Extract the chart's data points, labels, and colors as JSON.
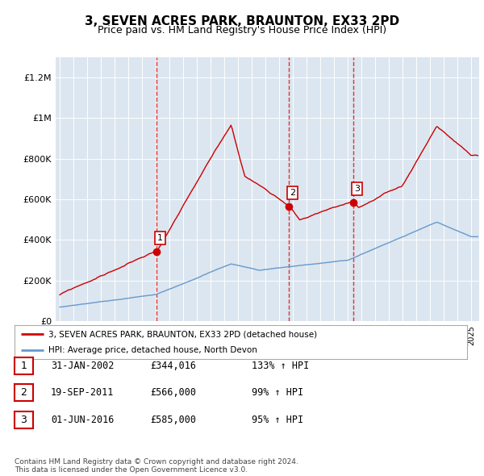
{
  "title": "3, SEVEN ACRES PARK, BRAUNTON, EX33 2PD",
  "subtitle": "Price paid vs. HM Land Registry's House Price Index (HPI)",
  "background_color": "#dce6f0",
  "red_line_color": "#cc0000",
  "blue_line_color": "#6699cc",
  "sale_marker_color": "#cc0000",
  "dashed_line_color": "#dd3333",
  "ylim": [
    0,
    1300000
  ],
  "yticks": [
    0,
    200000,
    400000,
    600000,
    800000,
    1000000,
    1200000
  ],
  "ytick_labels": [
    "£0",
    "£200K",
    "£400K",
    "£600K",
    "£800K",
    "£1M",
    "£1.2M"
  ],
  "sales": [
    {
      "label": "1",
      "date_num": 2002.08,
      "price": 344016
    },
    {
      "label": "2",
      "date_num": 2011.72,
      "price": 566000
    },
    {
      "label": "3",
      "date_num": 2016.42,
      "price": 585000
    }
  ],
  "sale_table": [
    {
      "num": "1",
      "date": "31-JAN-2002",
      "price": "£344,016",
      "hpi": "133% ↑ HPI"
    },
    {
      "num": "2",
      "date": "19-SEP-2011",
      "price": "£566,000",
      "hpi": "99% ↑ HPI"
    },
    {
      "num": "3",
      "date": "01-JUN-2016",
      "price": "£585,000",
      "hpi": "95% ↑ HPI"
    }
  ],
  "legend_red": "3, SEVEN ACRES PARK, BRAUNTON, EX33 2PD (detached house)",
  "legend_blue": "HPI: Average price, detached house, North Devon",
  "footer": "Contains HM Land Registry data © Crown copyright and database right 2024.\nThis data is licensed under the Open Government Licence v3.0."
}
